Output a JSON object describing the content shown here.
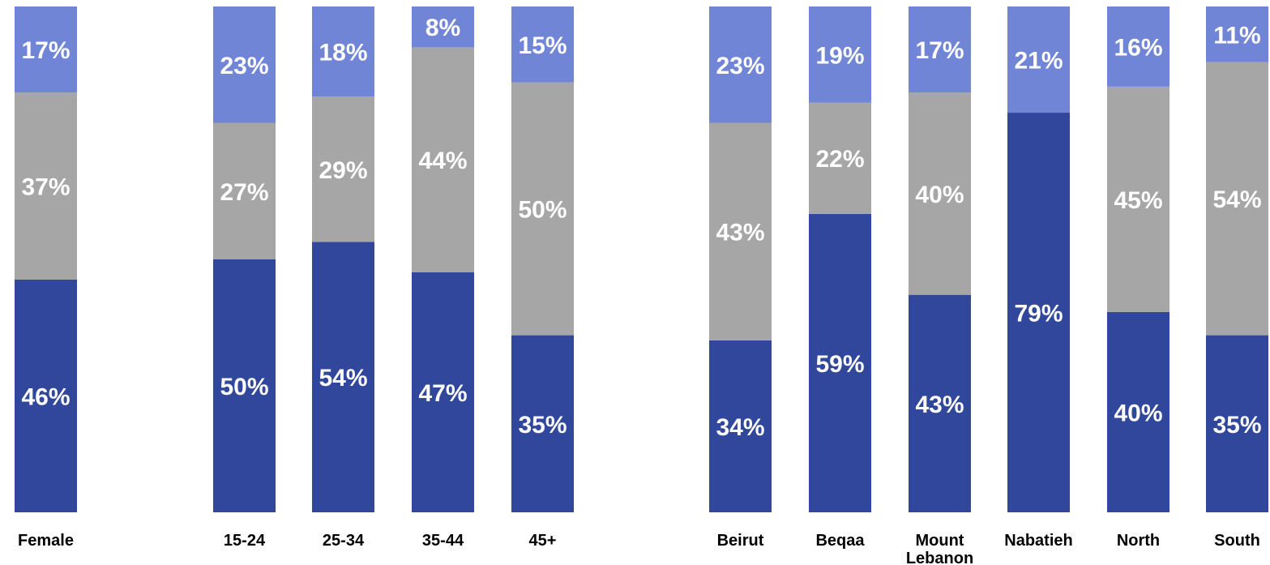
{
  "chart_data": {
    "type": "bar",
    "stacked": true,
    "percent_stacked": true,
    "categories": [
      [
        "Female"
      ],
      [
        "15-24"
      ],
      [
        "25-34"
      ],
      [
        "35-44"
      ],
      [
        "45+"
      ],
      [
        "Beirut"
      ],
      [
        "Beqaa"
      ],
      [
        "Mount",
        "Lebanon"
      ],
      [
        "Nabatieh"
      ],
      [
        "North"
      ],
      [
        "South"
      ]
    ],
    "series": [
      {
        "color": "#30479b",
        "values": [
          46,
          50,
          54,
          47,
          35,
          34,
          59,
          43,
          79,
          40,
          35
        ]
      },
      {
        "color": "#a6a6a6",
        "values": [
          37,
          27,
          29,
          44,
          50,
          43,
          22,
          40,
          null,
          45,
          54
        ]
      },
      {
        "color": "#7085d6",
        "values": [
          17,
          23,
          18,
          8,
          15,
          23,
          19,
          17,
          21,
          16,
          11
        ]
      }
    ],
    "data_labels": [
      [
        "46%",
        "50%",
        "54%",
        "47%",
        "35%",
        "34%",
        "59%",
        "43%",
        "79%",
        "40%",
        "35%"
      ],
      [
        "37%",
        "27%",
        "29%",
        "44%",
        "50%",
        "43%",
        "22%",
        "40%",
        "",
        "45%",
        "54%"
      ],
      [
        "17%",
        "23%",
        "18%",
        "8%",
        "15%",
        "23%",
        "19%",
        "17%",
        "21%",
        "16%",
        "11%"
      ]
    ],
    "ylim": [
      0,
      100
    ],
    "grid": false,
    "legend": "none",
    "title": "",
    "xlabel": "",
    "ylabel": ""
  }
}
